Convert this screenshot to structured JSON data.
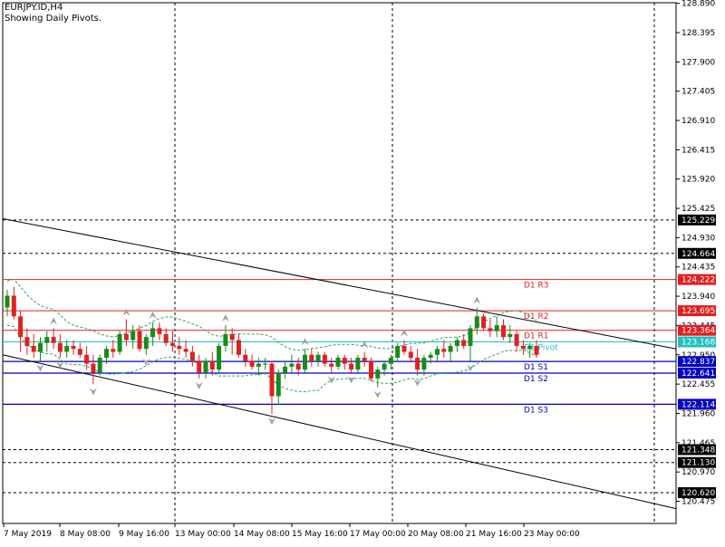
{
  "header": {
    "symbol": "EURJPY.ID,H4",
    "subtitle": "Showing Daily Pivots."
  },
  "colors": {
    "bull": "#1a8a1a",
    "bear": "#e02020",
    "resistance": "#e02020",
    "support": "#0000c0",
    "pivot": "#20c0c0",
    "envelope": "#2ea66a",
    "fractal": "#a0a0a0",
    "trend": "#000000"
  },
  "chart_data": {
    "type": "candlestick",
    "y_range": [
      120.1,
      128.9
    ],
    "y_ticks": [
      "128.890",
      "128.395",
      "127.900",
      "127.405",
      "126.910",
      "126.415",
      "125.920",
      "125.425",
      "124.930",
      "124.435",
      "123.940",
      "123.445",
      "122.950",
      "122.455",
      "121.960",
      "121.465",
      "120.970",
      "120.475"
    ],
    "x_labels": [
      "7 May 2019",
      "8 May 08:00",
      "9 May 16:00",
      "13 May 00:00",
      "14 May 08:00",
      "15 May 16:00",
      "17 May 00:00",
      "20 May 08:00",
      "21 May 16:00",
      "23 May 00:00"
    ],
    "price_tags": [
      {
        "value": "125.229",
        "kind": "black"
      },
      {
        "value": "124.664",
        "kind": "black"
      },
      {
        "value": "124.222",
        "kind": "red"
      },
      {
        "value": "123.695",
        "kind": "red"
      },
      {
        "value": "123.364",
        "kind": "red"
      },
      {
        "value": "123.168",
        "kind": "cyan"
      },
      {
        "value": "122.837",
        "kind": "blue"
      },
      {
        "value": "122.641",
        "kind": "blue"
      },
      {
        "value": "122.114",
        "kind": "blue"
      },
      {
        "value": "121.348",
        "kind": "black"
      },
      {
        "value": "121.130",
        "kind": "black"
      },
      {
        "value": "120.620",
        "kind": "black"
      }
    ],
    "pivots": [
      {
        "label": "D1  R3",
        "value": 124.222,
        "color": "resistance"
      },
      {
        "label": "D1  R2",
        "value": 123.695,
        "color": "resistance"
      },
      {
        "label": "D1  R1",
        "value": 123.364,
        "color": "resistance"
      },
      {
        "label": "D1  Pivot",
        "value": 123.168,
        "color": "pivot"
      },
      {
        "label": "D1  S1",
        "value": 122.837,
        "color": "support"
      },
      {
        "label": "D1  S2",
        "value": 122.641,
        "color": "support"
      },
      {
        "label": "D1  S3",
        "value": 122.114,
        "color": "support"
      }
    ],
    "trendlines": [
      {
        "x": [
          "7 May 2019",
          "23 May 00:00"
        ],
        "y": [
          125.25,
          123.05
        ]
      },
      {
        "x": [
          "7 May 2019",
          "23 May 00:00"
        ],
        "y": [
          122.95,
          120.35
        ]
      }
    ],
    "candles": [
      [
        123.75,
        124.05,
        123.6,
        123.95
      ],
      [
        123.95,
        124.1,
        123.55,
        123.6
      ],
      [
        123.6,
        123.7,
        123.0,
        123.25
      ],
      [
        123.25,
        123.4,
        122.95,
        123.1
      ],
      [
        123.1,
        123.3,
        122.9,
        123.0
      ],
      [
        123.0,
        123.25,
        122.85,
        123.15
      ],
      [
        123.15,
        123.35,
        123.0,
        123.25
      ],
      [
        123.25,
        123.4,
        123.05,
        123.15
      ],
      [
        123.15,
        123.3,
        122.9,
        123.0
      ],
      [
        123.0,
        123.2,
        122.9,
        123.1
      ],
      [
        123.1,
        123.2,
        122.95,
        123.05
      ],
      [
        123.05,
        123.15,
        122.9,
        122.95
      ],
      [
        122.95,
        123.1,
        122.7,
        122.8
      ],
      [
        122.8,
        122.95,
        122.45,
        122.65
      ],
      [
        122.65,
        122.95,
        122.6,
        122.9
      ],
      [
        122.9,
        123.1,
        122.8,
        123.05
      ],
      [
        123.05,
        123.2,
        122.9,
        123.0
      ],
      [
        123.0,
        123.35,
        122.95,
        123.3
      ],
      [
        123.3,
        123.55,
        123.1,
        123.2
      ],
      [
        123.2,
        123.45,
        123.05,
        123.35
      ],
      [
        123.35,
        123.45,
        123.0,
        123.05
      ],
      [
        123.05,
        123.3,
        122.95,
        123.25
      ],
      [
        123.25,
        123.5,
        123.1,
        123.4
      ],
      [
        123.4,
        123.5,
        123.2,
        123.3
      ],
      [
        123.3,
        123.4,
        123.1,
        123.15
      ],
      [
        123.15,
        123.35,
        123.0,
        123.1
      ],
      [
        123.1,
        123.25,
        122.95,
        123.05
      ],
      [
        123.05,
        123.2,
        122.9,
        123.0
      ],
      [
        123.0,
        123.1,
        122.75,
        122.85
      ],
      [
        122.85,
        122.95,
        122.55,
        122.65
      ],
      [
        122.65,
        122.9,
        122.55,
        122.85
      ],
      [
        122.85,
        123.0,
        122.6,
        122.7
      ],
      [
        122.7,
        123.15,
        122.65,
        123.1
      ],
      [
        123.1,
        123.45,
        123.0,
        123.3
      ],
      [
        123.3,
        123.4,
        122.95,
        123.2
      ],
      [
        123.2,
        123.3,
        122.9,
        122.95
      ],
      [
        122.95,
        123.05,
        122.75,
        122.85
      ],
      [
        122.85,
        122.95,
        122.7,
        122.75
      ],
      [
        122.75,
        122.9,
        122.6,
        122.8
      ],
      [
        122.8,
        122.9,
        122.7,
        122.8
      ],
      [
        122.8,
        122.85,
        121.95,
        122.25
      ],
      [
        122.25,
        122.7,
        122.1,
        122.65
      ],
      [
        122.65,
        122.85,
        122.55,
        122.75
      ],
      [
        122.75,
        122.95,
        122.65,
        122.8
      ],
      [
        122.8,
        122.9,
        122.6,
        122.7
      ],
      [
        122.7,
        123.05,
        122.65,
        122.95
      ],
      [
        122.95,
        123.05,
        122.75,
        122.85
      ],
      [
        122.85,
        123.0,
        122.75,
        122.95
      ],
      [
        122.95,
        123.0,
        122.75,
        122.8
      ],
      [
        122.8,
        122.9,
        122.65,
        122.75
      ],
      [
        122.75,
        122.95,
        122.7,
        122.9
      ],
      [
        122.9,
        122.95,
        122.7,
        122.8
      ],
      [
        122.8,
        122.9,
        122.65,
        122.7
      ],
      [
        122.7,
        122.95,
        122.65,
        122.9
      ],
      [
        122.9,
        123.0,
        122.75,
        122.85
      ],
      [
        122.85,
        122.9,
        122.5,
        122.55
      ],
      [
        122.55,
        122.75,
        122.4,
        122.7
      ],
      [
        122.7,
        122.85,
        122.6,
        122.8
      ],
      [
        122.8,
        122.95,
        122.7,
        122.9
      ],
      [
        122.9,
        123.15,
        122.85,
        123.1
      ],
      [
        123.1,
        123.2,
        122.95,
        123.0
      ],
      [
        123.0,
        123.1,
        122.85,
        122.9
      ],
      [
        122.9,
        123.05,
        122.6,
        122.7
      ],
      [
        122.7,
        122.95,
        122.6,
        122.9
      ],
      [
        122.9,
        123.0,
        122.8,
        122.95
      ],
      [
        122.95,
        123.1,
        122.85,
        123.05
      ],
      [
        123.05,
        123.2,
        122.9,
        123.0
      ],
      [
        123.0,
        123.15,
        122.85,
        123.1
      ],
      [
        123.1,
        123.25,
        123.0,
        123.2
      ],
      [
        123.2,
        123.3,
        123.05,
        123.1
      ],
      [
        123.1,
        123.45,
        122.85,
        123.4
      ],
      [
        123.4,
        123.75,
        123.3,
        123.6
      ],
      [
        123.6,
        123.65,
        123.35,
        123.4
      ],
      [
        123.4,
        123.55,
        123.25,
        123.35
      ],
      [
        123.35,
        123.6,
        123.25,
        123.45
      ],
      [
        123.45,
        123.55,
        123.2,
        123.25
      ],
      [
        123.25,
        123.45,
        123.15,
        123.3
      ],
      [
        123.3,
        123.35,
        123.0,
        123.1
      ],
      [
        123.1,
        123.2,
        122.95,
        123.05
      ],
      [
        123.05,
        123.15,
        122.9,
        123.1
      ],
      [
        123.1,
        123.2,
        122.9,
        122.95
      ]
    ]
  }
}
